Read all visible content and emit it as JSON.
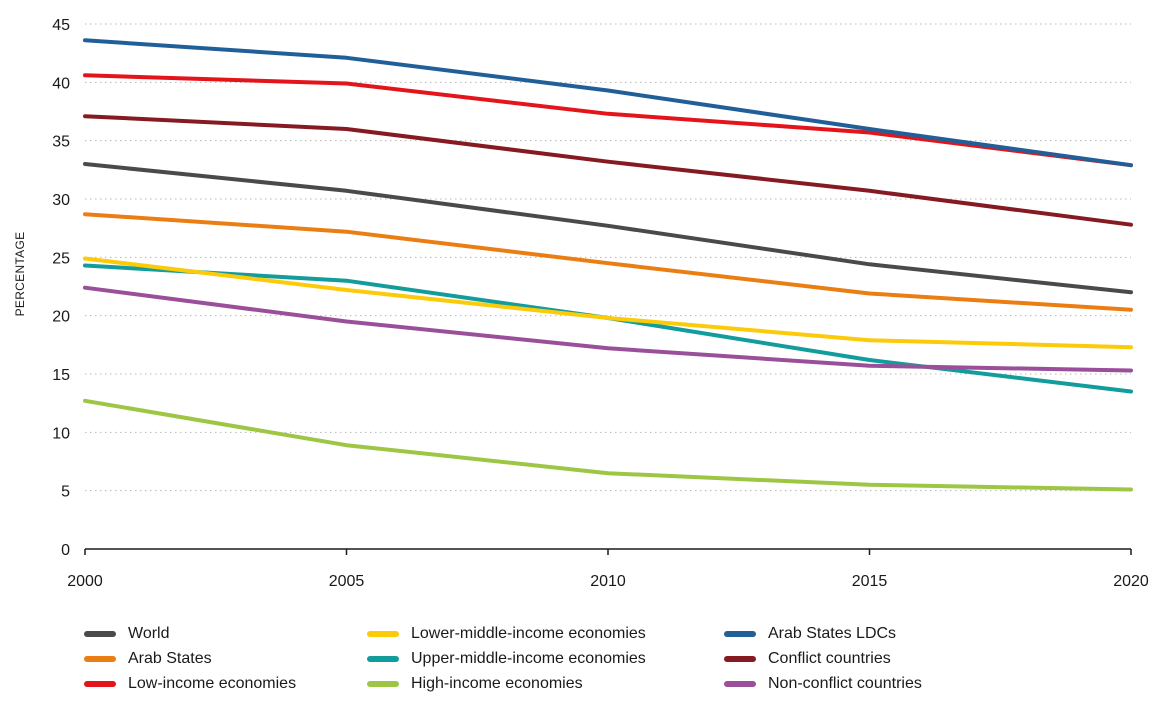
{
  "chart_data": {
    "type": "line",
    "ylabel": "PERCENTAGE",
    "ylim": [
      0,
      45
    ],
    "y_ticks": [
      "0",
      "5",
      "10",
      "15",
      "20",
      "25",
      "30",
      "35",
      "40",
      "45"
    ],
    "x": [
      2000,
      2005,
      2010,
      2015,
      2020
    ],
    "x_ticks": [
      "2000",
      "2005",
      "2010",
      "2015",
      "2020"
    ],
    "grid": "horizontal dotted",
    "legend_position": "bottom",
    "series": [
      {
        "name": "World",
        "color": "#4a4a4a",
        "values": [
          33.0,
          30.7,
          27.7,
          24.4,
          22.0
        ]
      },
      {
        "name": "Arab States",
        "color": "#ea7e13",
        "values": [
          28.7,
          27.2,
          24.5,
          21.9,
          20.5
        ]
      },
      {
        "name": "Low-income economies",
        "color": "#e3151b",
        "values": [
          40.6,
          39.9,
          37.3,
          35.7,
          32.9
        ]
      },
      {
        "name": "Lower-middle-income economies",
        "color": "#fbcb0a",
        "values": [
          24.9,
          22.2,
          19.8,
          17.9,
          17.3
        ]
      },
      {
        "name": "Upper-middle-income economies",
        "color": "#139c9c",
        "values": [
          24.3,
          23.0,
          19.8,
          16.2,
          13.5
        ]
      },
      {
        "name": "High-income economies",
        "color": "#9dc645",
        "values": [
          12.7,
          8.9,
          6.5,
          5.5,
          5.1
        ]
      },
      {
        "name": "Arab States LDCs",
        "color": "#215f98",
        "values": [
          43.6,
          42.1,
          39.3,
          36.0,
          32.9
        ]
      },
      {
        "name": "Conflict countries",
        "color": "#861a22",
        "values": [
          37.1,
          36.0,
          33.2,
          30.7,
          27.8
        ]
      },
      {
        "name": "Non-conflict countries",
        "color": "#9a4f9a",
        "values": [
          22.4,
          19.5,
          17.2,
          15.7,
          15.3
        ]
      }
    ]
  }
}
